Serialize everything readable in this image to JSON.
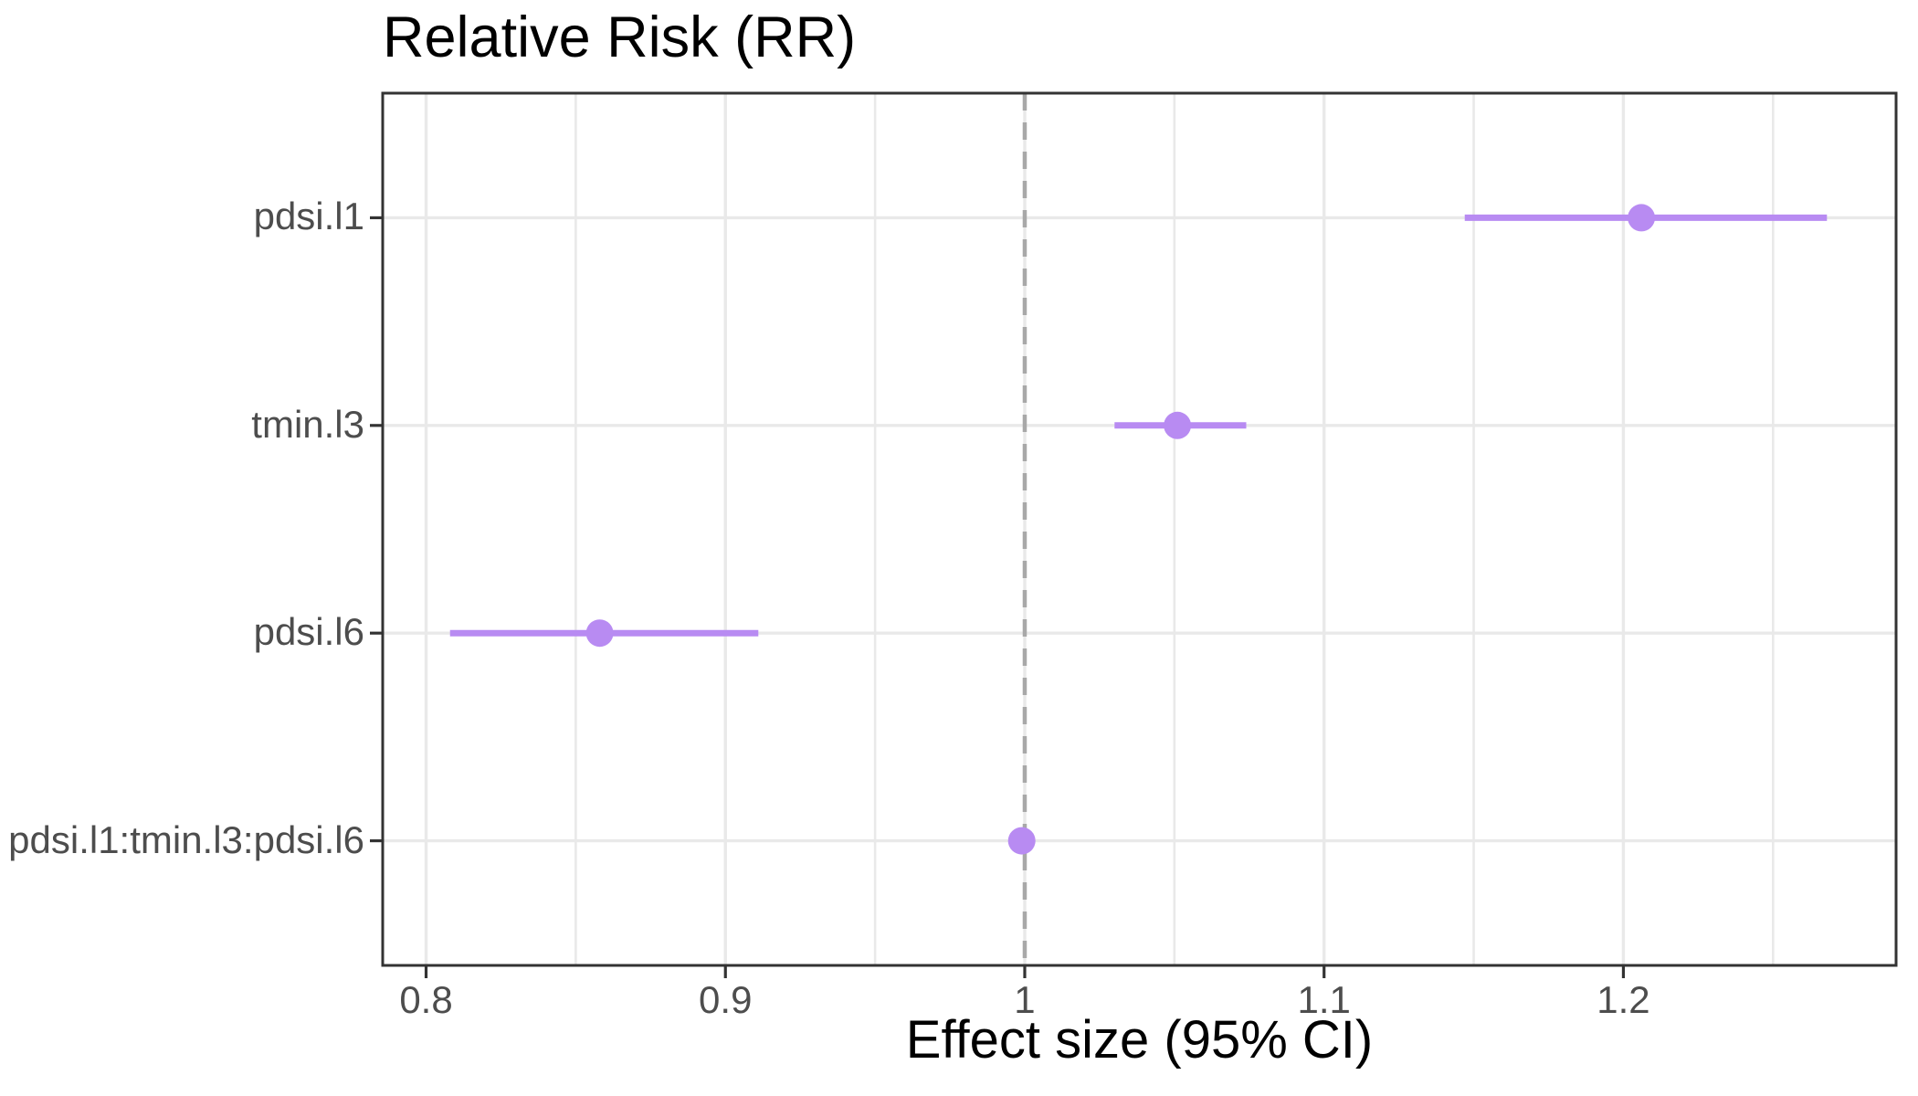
{
  "chart_data": {
    "type": "scatter",
    "subtype": "forest-plot",
    "title": "Relative Risk (RR)",
    "xlabel": "Effect size (95% CI)",
    "ylabel": "",
    "xlim": [
      0.7855,
      1.2911
    ],
    "x_major_ticks": [
      0.8,
      0.9,
      1.0,
      1.1,
      1.2
    ],
    "x_tick_labels": [
      "0.8",
      "0.9",
      "1",
      "1.1",
      "1.2"
    ],
    "x_minor_ticks": [
      0.85,
      0.95,
      1.05,
      1.15,
      1.25
    ],
    "grid": true,
    "legend_position": "none",
    "reference_line": {
      "x": 1.0,
      "style": "dashed"
    },
    "series": [
      {
        "name": "pdsi.l1",
        "estimate": 1.206,
        "ci_low": 1.147,
        "ci_high": 1.268
      },
      {
        "name": "tmin.l3",
        "estimate": 1.051,
        "ci_low": 1.03,
        "ci_high": 1.074
      },
      {
        "name": "pdsi.l6",
        "estimate": 0.858,
        "ci_low": 0.808,
        "ci_high": 0.911
      },
      {
        "name": "pdsi.l1:tmin.l3:pdsi.l6",
        "estimate": 0.999,
        "ci_low": 0.995,
        "ci_high": 1.002
      }
    ],
    "colors": {
      "marker": "#B88BF2",
      "ci_line": "#B88BF2",
      "reference_line": "#A8A8A8",
      "gridline": "#E9E9E9",
      "panel_border": "#333333",
      "axis_tick": "#333333",
      "tick_label": "#4D4D4D",
      "title_text": "#000000",
      "background": "#FFFFFF"
    }
  }
}
